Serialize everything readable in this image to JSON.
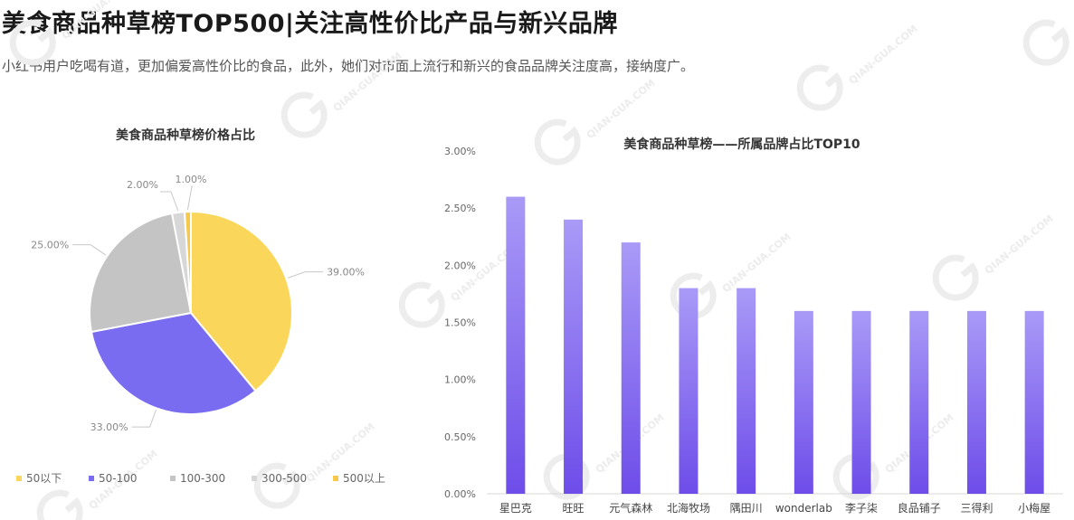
{
  "page": {
    "title": "美食商品种草榜TOP500|关注高性价比产品与新兴品牌",
    "subtitle": "小红书用户吃喝有道，更加偏爱高性价比的食品，此外，她们对市面上流行和新兴的食品品牌关注度高，接纳度广。"
  },
  "watermark": {
    "text": "QIAN-GUA.COM"
  },
  "colors": {
    "pie": [
      "#fad75a",
      "#7a6cf0",
      "#c4c4c4",
      "#d7d7d7",
      "#f6c94b"
    ],
    "bar_top": "#a99af7",
    "bar_bottom": "#6e4de9"
  },
  "chart_data": [
    {
      "type": "pie",
      "title": "美食商品种草榜价格占比",
      "slices": [
        {
          "label": "50以下",
          "value": 39.0,
          "display": "39.00%"
        },
        {
          "label": "50-100",
          "value": 33.0,
          "display": "33.00%"
        },
        {
          "label": "100-300",
          "value": 25.0,
          "display": "25.00%"
        },
        {
          "label": "300-500",
          "value": 2.0,
          "display": "2.00%"
        },
        {
          "label": "500以上",
          "value": 1.0,
          "display": "1.00%"
        }
      ],
      "legend_position": "bottom"
    },
    {
      "type": "bar",
      "title": "美食商品种草榜——所属品牌占比TOP10",
      "categories": [
        "星巴克",
        "旺旺",
        "元气森林",
        "北海牧场",
        "隅田川",
        "wonderlab",
        "李子柒",
        "良品铺子",
        "三得利",
        "小梅屋"
      ],
      "values": [
        2.6,
        2.4,
        2.2,
        1.8,
        1.8,
        1.6,
        1.6,
        1.6,
        1.6,
        1.6
      ],
      "ylim": [
        0,
        3.0
      ],
      "yticks": [
        "0.00%",
        "0.50%",
        "1.00%",
        "1.50%",
        "2.00%",
        "2.50%",
        "3.00%"
      ],
      "ytick_values": [
        0,
        0.5,
        1.0,
        1.5,
        2.0,
        2.5,
        3.0
      ],
      "grid": false
    }
  ]
}
